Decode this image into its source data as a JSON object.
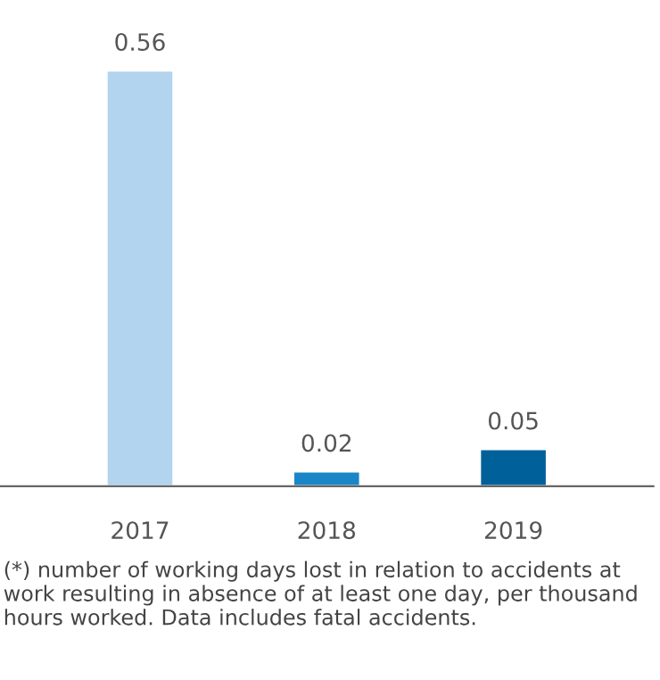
{
  "chart_data": {
    "type": "bar",
    "categories": [
      "2017",
      "2018",
      "2019"
    ],
    "values": [
      0.56,
      0.02,
      0.05
    ],
    "colors": [
      "#b3d4ef",
      "#1a86c8",
      "#00609a"
    ],
    "data_labels": true,
    "grid": false,
    "legend": false,
    "annotations": [
      "(*) number of working days lost in relation to accidents at work resulting in absence of at least one day, per thousand hours worked. Data includes fatal accidents."
    ]
  }
}
